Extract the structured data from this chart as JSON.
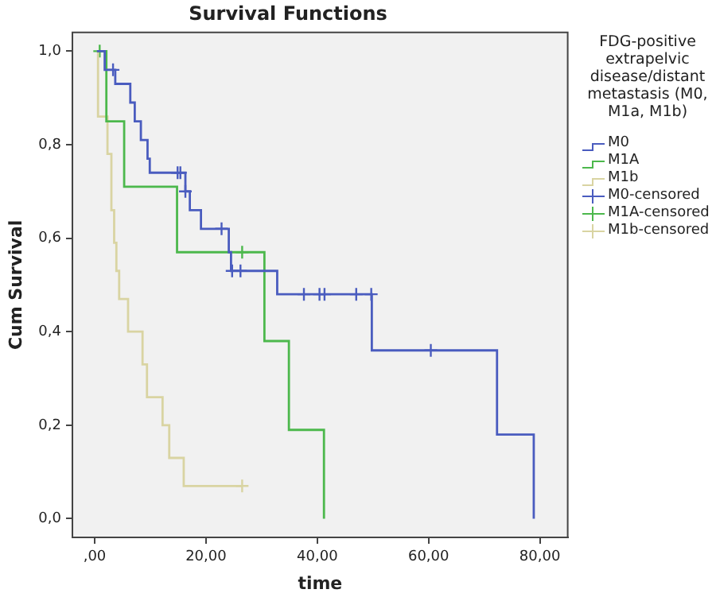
{
  "chart_data": {
    "type": "step",
    "title": "Survival Functions",
    "xlabel": "time",
    "ylabel": "Cum Survival",
    "legend_title": "FDG-positive extrapelvic disease/distant metastasis (M0, M1a, M1b)",
    "legend": "right",
    "xlim": [
      -4,
      85
    ],
    "ylim": [
      -0.04,
      1.04
    ],
    "xticks": [
      {
        "value": 0,
        "label": ",00"
      },
      {
        "value": 20,
        "label": "20,00"
      },
      {
        "value": 40,
        "label": "40,00"
      },
      {
        "value": 60,
        "label": "60,00"
      },
      {
        "value": 80,
        "label": "80,00"
      }
    ],
    "yticks": [
      {
        "value": 0,
        "label": "0,0"
      },
      {
        "value": 0.2,
        "label": "0,2"
      },
      {
        "value": 0.4,
        "label": "0,4"
      },
      {
        "value": 0.6,
        "label": "0,6"
      },
      {
        "value": 0.8,
        "label": "0,8"
      },
      {
        "value": 1,
        "label": "1,0"
      }
    ],
    "series": [
      {
        "name": "M0",
        "type": "step",
        "color": "#4a5cbf",
        "marker": "none",
        "x": [
          0.4,
          1.8,
          3.7,
          6.4,
          7.2,
          8.3,
          9.5,
          9.9,
          16.3,
          17.1,
          19.1,
          24.1,
          24.5,
          32.8,
          49.8,
          72.3,
          78.9
        ],
        "values": [
          1.0,
          0.96,
          0.93,
          0.89,
          0.85,
          0.81,
          0.77,
          0.74,
          0.7,
          0.66,
          0.62,
          0.57,
          0.53,
          0.48,
          0.36,
          0.18,
          0
        ]
      },
      {
        "name": "M1A",
        "type": "step",
        "color": "#4cb84c",
        "marker": "none",
        "x": [
          0.4,
          2.1,
          5.3,
          14.8,
          30.5,
          34.9,
          41.2
        ],
        "values": [
          1.0,
          0.85,
          0.71,
          0.57,
          0.38,
          0.19,
          0
        ]
      },
      {
        "name": "M1b",
        "type": "step",
        "color": "#d9d4a2",
        "marker": "none",
        "x": [
          0.4,
          0.6,
          2.3,
          3.0,
          3.5,
          3.9,
          4.4,
          6.0,
          8.6,
          9.4,
          12.2,
          13.4,
          16.0,
          26.5
        ],
        "values": [
          1.0,
          0.86,
          0.78,
          0.66,
          0.59,
          0.53,
          0.47,
          0.4,
          0.33,
          0.26,
          0.2,
          0.13,
          0.07,
          0.07
        ]
      },
      {
        "name": "M0-censored",
        "type": "scatter",
        "color": "#4a5cbf",
        "marker": "cross",
        "x": [
          3.3,
          14.9,
          15.4,
          16.3,
          22.8,
          24.7,
          26.2,
          37.6,
          40.4,
          41.3,
          47.0,
          49.7,
          60.4
        ],
        "values": [
          0.96,
          0.74,
          0.74,
          0.7,
          0.62,
          0.53,
          0.53,
          0.48,
          0.48,
          0.48,
          0.48,
          0.48,
          0.36
        ]
      },
      {
        "name": "M1A-censored",
        "type": "scatter",
        "color": "#4cb84c",
        "marker": "cross",
        "x": [
          0.9,
          26.5
        ],
        "values": [
          1.0,
          0.57
        ]
      },
      {
        "name": "M1b-censored",
        "type": "scatter",
        "color": "#d9d4a2",
        "marker": "cross",
        "x": [
          26.5
        ],
        "values": [
          0.07
        ]
      }
    ]
  }
}
